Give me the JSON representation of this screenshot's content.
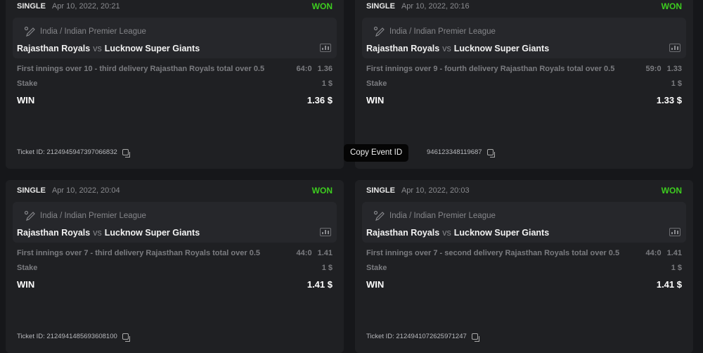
{
  "tooltip": "Copy Event ID",
  "tickets": [
    {
      "type": "SINGLE",
      "date": "Apr 10, 2022, 20:21",
      "status": "WON",
      "league": "India / Indian Premier League",
      "team1": "Rajasthan Royals",
      "vs": "vs",
      "team2": "Lucknow Super Giants",
      "selection": "First innings over 10 - third delivery Rajasthan Royals total over 0.5",
      "score": "64:0",
      "odds": "1.36",
      "stake_label": "Stake",
      "stake": "1 $",
      "win_label": "WIN",
      "win": "1.36 $",
      "ticket_id": "Ticket ID: 2124945947397066832"
    },
    {
      "type": "SINGLE",
      "date": "Apr 10, 2022, 20:16",
      "status": "WON",
      "league": "India / Indian Premier League",
      "team1": "Rajasthan Royals",
      "vs": "vs",
      "team2": "Lucknow Super Giants",
      "selection": "First innings over 9 - fourth delivery Rajasthan Royals total over 0.5",
      "score": "59:0",
      "odds": "1.33",
      "stake_label": "Stake",
      "stake": "1 $",
      "win_label": "WIN",
      "win": "1.33 $",
      "ticket_id": "946123348119687"
    },
    {
      "type": "SINGLE",
      "date": "Apr 10, 2022, 20:04",
      "status": "WON",
      "league": "India / Indian Premier League",
      "team1": "Rajasthan Royals",
      "vs": "vs",
      "team2": "Lucknow Super Giants",
      "selection": "First innings over 7 - third delivery Rajasthan Royals total over 0.5",
      "score": "44:0",
      "odds": "1.41",
      "stake_label": "Stake",
      "stake": "1 $",
      "win_label": "WIN",
      "win": "1.41 $",
      "ticket_id": "Ticket ID: 2124941485693608100"
    },
    {
      "type": "SINGLE",
      "date": "Apr 10, 2022, 20:03",
      "status": "WON",
      "league": "India / Indian Premier League",
      "team1": "Rajasthan Royals",
      "vs": "vs",
      "team2": "Lucknow Super Giants",
      "selection": "First innings over 7 - second delivery Rajasthan Royals total over 0.5",
      "score": "44:0",
      "odds": "1.41",
      "stake_label": "Stake",
      "stake": "1 $",
      "win_label": "WIN",
      "win": "1.41 $",
      "ticket_id": "Ticket ID: 2124941072625971247"
    }
  ],
  "colors": {
    "won": "#3dcc1f",
    "card": "#1f2023",
    "background": "#16171a"
  }
}
